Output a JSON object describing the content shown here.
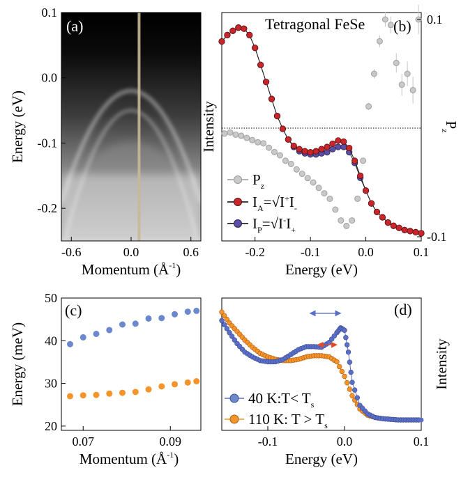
{
  "chart_data": [
    {
      "panel": "(a)",
      "type": "heatmap",
      "title": "",
      "xlabel": "Momentum (Å",
      "xlabel_sup": "-1",
      "xlabel_tail": ")",
      "ylabel": "Energy (eV)",
      "xlim": [
        -0.7,
        0.7
      ],
      "ylim": [
        -0.25,
        0.1
      ],
      "xticks": [
        -0.6,
        0.0,
        0.6
      ],
      "xtick_labels": [
        "-0.6",
        "0.0",
        "0.6"
      ],
      "yticks": [
        0.1,
        0.0,
        -0.1,
        -0.2
      ],
      "ytick_labels": [
        "0.1",
        "0.0",
        "-0.1",
        "-0.2"
      ],
      "vertical_cut_momentum": 0.08,
      "bands": [
        {
          "name": "outer",
          "apex_energy": -0.02,
          "curvature": 0.35
        },
        {
          "name": "inner",
          "apex_energy": -0.05,
          "curvature": 0.45
        }
      ]
    },
    {
      "panel": "(b)",
      "type": "line",
      "title": "Tetragonal FeSe",
      "xlabel": "Energy (eV)",
      "ylabel": "Intensity",
      "y2label": "P",
      "y2label_sub": "z",
      "xlim": [
        -0.26,
        0.1
      ],
      "xticks": [
        -0.2,
        -0.1,
        0.0,
        0.1
      ],
      "xtick_labels": [
        "-0.2",
        "-0.1",
        "0.0",
        "0.1"
      ],
      "y2lim": [
        -0.1,
        0.1
      ],
      "y2ticks": [
        0.1,
        -0.1
      ],
      "y2tick_labels": [
        "0.1",
        "-0.1"
      ],
      "legend_position": "bottom-left",
      "x": [
        -0.26,
        -0.25,
        -0.24,
        -0.23,
        -0.22,
        -0.21,
        -0.2,
        -0.19,
        -0.18,
        -0.17,
        -0.16,
        -0.15,
        -0.14,
        -0.13,
        -0.12,
        -0.11,
        -0.1,
        -0.09,
        -0.08,
        -0.07,
        -0.06,
        -0.05,
        -0.04,
        -0.03,
        -0.02,
        -0.01,
        0.0,
        0.01,
        0.02,
        0.03,
        0.04,
        0.05,
        0.06,
        0.07,
        0.08,
        0.09,
        0.1
      ],
      "series": [
        {
          "name": "I_A",
          "color": "#c8262a",
          "values": [
            0.91,
            0.94,
            0.96,
            0.975,
            0.97,
            0.94,
            0.88,
            0.8,
            0.72,
            0.64,
            0.56,
            0.5,
            0.45,
            0.42,
            0.405,
            0.395,
            0.39,
            0.395,
            0.405,
            0.415,
            0.43,
            0.445,
            0.44,
            0.41,
            0.35,
            0.28,
            0.21,
            0.15,
            0.11,
            0.085,
            0.06,
            0.045,
            0.035,
            0.025,
            0.02,
            0.015,
            0.01
          ]
        },
        {
          "name": "I_P",
          "color": "#5a4fa5",
          "values": [
            0.91,
            0.94,
            0.96,
            0.975,
            0.97,
            0.94,
            0.88,
            0.8,
            0.72,
            0.64,
            0.56,
            0.5,
            0.45,
            0.415,
            0.395,
            0.385,
            0.38,
            0.38,
            0.385,
            0.39,
            0.405,
            0.415,
            0.415,
            0.39,
            0.34,
            0.27,
            0.21,
            0.15,
            0.11,
            0.085,
            0.06,
            0.045,
            0.035,
            0.025,
            0.02,
            0.015,
            0.01
          ]
        },
        {
          "name": "P_z",
          "axis": "right",
          "color": "#b5b5b5",
          "x": [
            -0.255,
            -0.245,
            -0.235,
            -0.225,
            -0.215,
            -0.205,
            -0.195,
            -0.185,
            -0.175,
            -0.165,
            -0.155,
            -0.145,
            -0.135,
            -0.125,
            -0.115,
            -0.105,
            -0.095,
            -0.085,
            -0.075,
            -0.065,
            -0.055,
            -0.045,
            -0.035,
            -0.025,
            -0.015,
            -0.005,
            0.005,
            0.015,
            0.025,
            0.035,
            0.045,
            0.055,
            0.065,
            0.075,
            0.085,
            0.095
          ],
          "values": [
            -0.005,
            -0.004,
            -0.006,
            -0.007,
            -0.009,
            -0.011,
            -0.013,
            -0.014,
            -0.018,
            -0.022,
            -0.025,
            -0.03,
            -0.033,
            -0.038,
            -0.042,
            -0.046,
            -0.05,
            -0.055,
            -0.06,
            -0.065,
            -0.075,
            -0.085,
            -0.09,
            -0.085,
            -0.065,
            -0.03,
            0.02,
            0.05,
            0.08,
            0.1,
            0.095,
            0.06,
            0.04,
            0.05,
            0.035,
            0.1
          ]
        }
      ],
      "legend": [
        {
          "key": "P",
          "sub": "z",
          "rest": ""
        },
        {
          "key": "I",
          "sub": "A",
          "rest": "=√I",
          "rest2": "I"
        },
        {
          "key": "I",
          "sub": "P",
          "rest": "=√I",
          "rest2": "I"
        }
      ]
    },
    {
      "panel": "(c)",
      "type": "scatter",
      "title": "",
      "xlabel": "Momentum (Å",
      "xlabel_sup": "-1",
      "xlabel_tail": ")",
      "ylabel": "Energy (meV)",
      "xlim": [
        0.065,
        0.097
      ],
      "ylim": [
        19,
        50
      ],
      "xticks": [
        0.07,
        0.09
      ],
      "xtick_labels": [
        "0.07",
        "0.09"
      ],
      "yticks": [
        20,
        30,
        40,
        50
      ],
      "ytick_labels": [
        "20",
        "30",
        "40",
        "50"
      ],
      "series": [
        {
          "name": "",
          "color": "#6b88cf",
          "x": [
            0.067,
            0.07,
            0.073,
            0.076,
            0.079,
            0.082,
            0.085,
            0.088,
            0.091,
            0.094,
            0.096
          ],
          "values": [
            39.2,
            40.8,
            41.6,
            42.5,
            43.8,
            44.0,
            45.2,
            45.3,
            46.2,
            46.8,
            47.0
          ]
        },
        {
          "name": "",
          "color": "#f4942a",
          "x": [
            0.067,
            0.07,
            0.073,
            0.076,
            0.079,
            0.082,
            0.085,
            0.088,
            0.091,
            0.094,
            0.096
          ],
          "values": [
            27.0,
            27.2,
            27.3,
            27.6,
            27.8,
            28.0,
            28.6,
            29.3,
            29.8,
            30.2,
            30.5
          ]
        }
      ]
    },
    {
      "panel": "(d)",
      "type": "line",
      "title": "",
      "xlabel": "Energy (eV)",
      "ylabel": "Intensity",
      "xlim": [
        -0.16,
        0.1
      ],
      "xticks": [
        -0.1,
        0.0,
        0.1
      ],
      "xtick_labels": [
        "-0.1",
        "0.0",
        "0.1"
      ],
      "legend_position": "bottom-left",
      "series": [
        {
          "name": "40 K:T< T",
          "name_sub": "s",
          "color": "#5a6fc8",
          "x": [
            -0.16,
            -0.15,
            -0.14,
            -0.13,
            -0.12,
            -0.11,
            -0.1,
            -0.09,
            -0.08,
            -0.07,
            -0.06,
            -0.05,
            -0.04,
            -0.03,
            -0.02,
            -0.01,
            -0.005,
            0.0,
            0.005,
            0.01,
            0.02,
            0.03,
            0.04,
            0.05,
            0.06,
            0.07,
            0.08,
            0.09,
            0.1
          ],
          "values": [
            0.86,
            0.76,
            0.67,
            0.6,
            0.56,
            0.53,
            0.52,
            0.52,
            0.54,
            0.58,
            0.62,
            0.645,
            0.645,
            0.64,
            0.68,
            0.76,
            0.8,
            0.78,
            0.6,
            0.35,
            0.16,
            0.09,
            0.06,
            0.05,
            0.045,
            0.04,
            0.04,
            0.04,
            0.04
          ]
        },
        {
          "name": "110 K: T > T",
          "name_sub": "s",
          "color": "#f4942a",
          "x": [
            -0.16,
            -0.15,
            -0.14,
            -0.13,
            -0.12,
            -0.11,
            -0.1,
            -0.09,
            -0.08,
            -0.07,
            -0.06,
            -0.05,
            -0.04,
            -0.03,
            -0.02,
            -0.01,
            0.0,
            0.01,
            0.02,
            0.03,
            0.04,
            0.05,
            0.06,
            0.07,
            0.08,
            0.09,
            0.1
          ],
          "values": [
            0.93,
            0.84,
            0.77,
            0.7,
            0.64,
            0.59,
            0.56,
            0.54,
            0.53,
            0.53,
            0.54,
            0.56,
            0.57,
            0.57,
            0.56,
            0.52,
            0.4,
            0.24,
            0.13,
            0.08,
            0.06,
            0.05,
            0.045,
            0.04,
            0.04,
            0.04,
            0.04
          ]
        }
      ],
      "annotations": [
        {
          "type": "double-arrow",
          "color": "#5a6fc8",
          "x_from": -0.045,
          "x_to": -0.005,
          "level": 0.92
        },
        {
          "type": "double-arrow",
          "color": "#e14b2a",
          "x_from": -0.035,
          "x_to": -0.01,
          "level": 0.66
        }
      ]
    }
  ]
}
